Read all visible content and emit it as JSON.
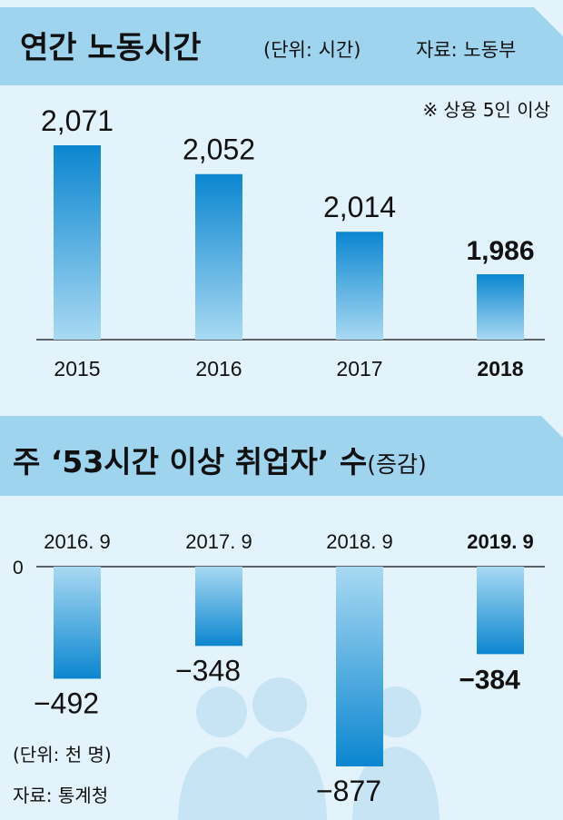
{
  "chart1": {
    "title": "연간 노동시간",
    "unit": "(단위: 시간)",
    "source": "자료: 노동부",
    "note": "※ 상용 5인 이상",
    "chart_data": {
      "type": "bar",
      "categories": [
        "2015",
        "2016",
        "2017",
        "2018"
      ],
      "values": [
        2071,
        2052,
        2014,
        1986
      ],
      "value_labels": [
        "2,071",
        "2,052",
        "2,014",
        "1,986"
      ],
      "highlight_index": 3
    }
  },
  "chart2": {
    "title": "주 ‘53시간 이상 취업자’ 수",
    "title_suffix": "(증감)",
    "unit": "(단위: 천 명)",
    "source": "자료: 통계청",
    "zero_label": "0",
    "chart_data": {
      "type": "bar",
      "categories": [
        "2016. 9",
        "2017. 9",
        "2018. 9",
        "2019. 9"
      ],
      "values": [
        -492,
        -348,
        -877,
        -384
      ],
      "value_labels": [
        "−492",
        "−348",
        "−877",
        "−384"
      ],
      "highlight_index": 3
    }
  },
  "colors": {
    "background": "#dff1fb",
    "title_band": "#9fd4ee",
    "bar_top": "#0b86d0",
    "bar_bottom": "#a8d9f2",
    "axis": "#333333",
    "watermark": "#c6e4f4"
  }
}
